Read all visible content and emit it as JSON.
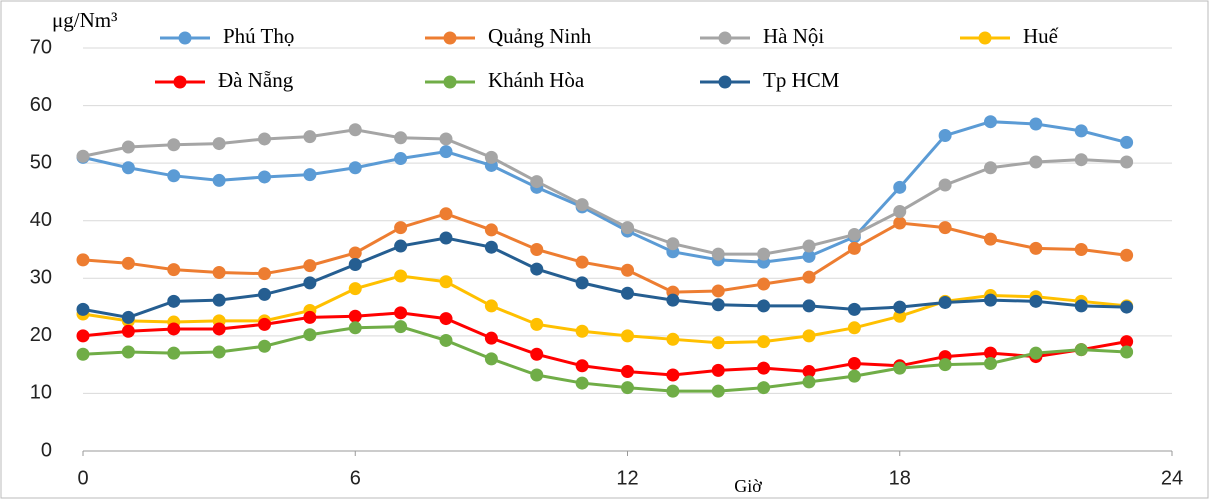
{
  "chart_data": {
    "type": "line",
    "y_label": "μg/Nm³",
    "x_label": "Giờ",
    "x": [
      0,
      1,
      2,
      3,
      4,
      5,
      6,
      7,
      8,
      9,
      10,
      11,
      12,
      13,
      14,
      15,
      16,
      17,
      18,
      19,
      20,
      21,
      22,
      23
    ],
    "xlim": [
      0,
      24
    ],
    "xticks": [
      0,
      6,
      12,
      18,
      24
    ],
    "ylim": [
      0,
      70
    ],
    "yticks": [
      0,
      10,
      20,
      30,
      40,
      50,
      60,
      70
    ],
    "grid": true,
    "series": [
      {
        "name": "Phú Thọ",
        "color": "#5b9bd5",
        "values": [
          51,
          49.2,
          47.8,
          47,
          47.6,
          48,
          49.2,
          50.8,
          52,
          49.6,
          45.8,
          42.4,
          38.2,
          34.6,
          33.2,
          32.8,
          33.8,
          37.2,
          45.8,
          54.8,
          57.2,
          56.8,
          55.6,
          53.6
        ]
      },
      {
        "name": "Quảng Ninh",
        "color": "#ed7d31",
        "values": [
          33.2,
          32.6,
          31.5,
          31,
          30.8,
          32.2,
          34.4,
          38.8,
          41.2,
          38.4,
          35,
          32.8,
          31.4,
          27.6,
          27.8,
          29,
          30.2,
          35.2,
          39.6,
          38.8,
          36.8,
          35.2,
          35,
          34
        ]
      },
      {
        "name": "Hà Nội",
        "color": "#a5a5a5",
        "values": [
          51.2,
          52.8,
          53.2,
          53.4,
          54.2,
          54.6,
          55.8,
          54.4,
          54.2,
          51,
          46.8,
          42.8,
          38.8,
          36,
          34.2,
          34.2,
          35.6,
          37.6,
          41.6,
          46.2,
          49.2,
          50.2,
          50.6,
          50.2
        ]
      },
      {
        "name": "Huế",
        "color": "#ffc000",
        "values": [
          23.8,
          22.6,
          22.4,
          22.6,
          22.6,
          24.4,
          28.2,
          30.4,
          29.4,
          25.2,
          22,
          20.8,
          20,
          19.4,
          18.8,
          19,
          20,
          21.4,
          23.4,
          26,
          27,
          26.8,
          26,
          25.2
        ]
      },
      {
        "name": "Đà Nẵng",
        "color": "#ff0000",
        "values": [
          20,
          20.8,
          21.2,
          21.2,
          22,
          23.2,
          23.4,
          24,
          23,
          19.6,
          16.8,
          14.8,
          13.8,
          13.2,
          14,
          14.4,
          13.8,
          15.2,
          14.8,
          16.4,
          17,
          16.4,
          17.6,
          19
        ]
      },
      {
        "name": "Khánh Hòa",
        "color": "#70ad47",
        "values": [
          16.8,
          17.2,
          17,
          17.2,
          18.2,
          20.2,
          21.4,
          21.6,
          19.2,
          16,
          13.2,
          11.8,
          11,
          10.4,
          10.4,
          11,
          12,
          13,
          14.4,
          15,
          15.2,
          17,
          17.6,
          17.2
        ]
      },
      {
        "name": "Tp HCM",
        "color": "#255e91",
        "values": [
          24.6,
          23.2,
          26,
          26.2,
          27.2,
          29.2,
          32.4,
          35.6,
          37,
          35.4,
          31.6,
          29.2,
          27.4,
          26.2,
          25.4,
          25.2,
          25.2,
          24.6,
          25,
          25.8,
          26.2,
          26,
          25.2,
          25
        ]
      }
    ]
  }
}
